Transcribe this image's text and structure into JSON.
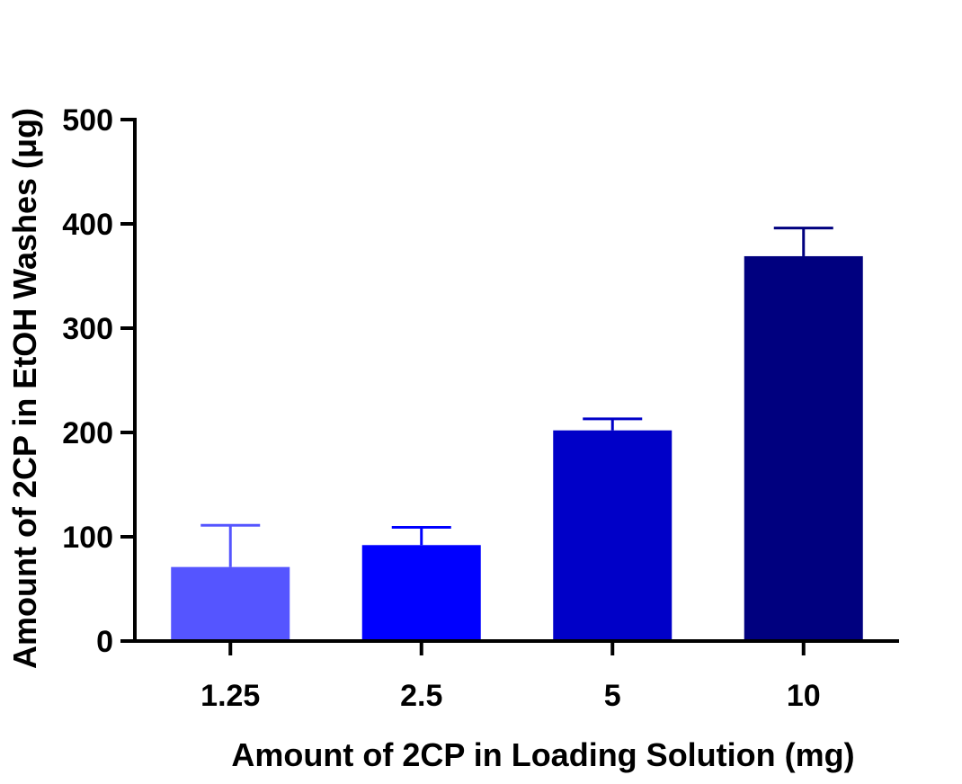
{
  "chart_data": {
    "type": "bar",
    "title": "",
    "xlabel": "Amount of 2CP in Loading Solution (mg)",
    "ylabel": "Amount of 2CP in EtOH Washes (μg)",
    "categories": [
      "1.25",
      "2.5",
      "5",
      "10"
    ],
    "values": [
      71,
      92,
      202,
      369
    ],
    "error_upper": [
      111,
      109,
      213,
      396
    ],
    "bar_colors": [
      "#5555ff",
      "#0000ff",
      "#0000c8",
      "#00007f"
    ],
    "ylim": [
      0,
      500
    ],
    "yticks": [
      0,
      100,
      200,
      300,
      400,
      500
    ],
    "grid": false,
    "legend": "none"
  }
}
